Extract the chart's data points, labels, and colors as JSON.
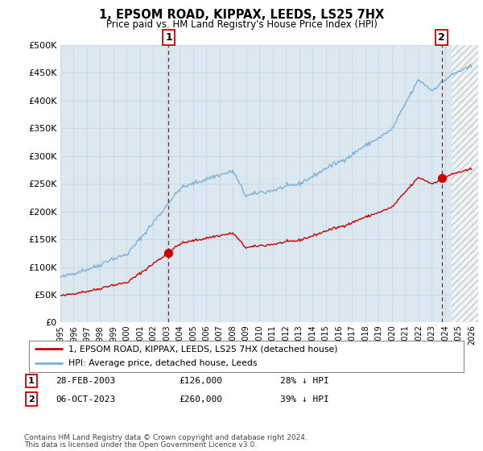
{
  "title": "1, EPSOM ROAD, KIPPAX, LEEDS, LS25 7HX",
  "subtitle": "Price paid vs. HM Land Registry's House Price Index (HPI)",
  "ylim": [
    0,
    500000
  ],
  "yticks": [
    0,
    50000,
    100000,
    150000,
    200000,
    250000,
    300000,
    350000,
    400000,
    450000,
    500000
  ],
  "xlim_start": 1995.0,
  "xlim_end": 2026.5,
  "hatch_start": 2024.5,
  "sale1_date": 2003.16,
  "sale1_price": 126000,
  "sale1_label": "1",
  "sale2_date": 2023.75,
  "sale2_price": 260000,
  "sale2_label": "2",
  "line_color_hpi": "#7ab0d4",
  "line_color_price": "#cc0000",
  "marker_color": "#cc0000",
  "vline_color": "#cc0000",
  "grid_color": "#c8d8e8",
  "background_color": "#dce8f0",
  "legend_entry1": "1, EPSOM ROAD, KIPPAX, LEEDS, LS25 7HX (detached house)",
  "legend_entry2": "HPI: Average price, detached house, Leeds",
  "table_rows": [
    {
      "num": "1",
      "date": "28-FEB-2003",
      "price": "£126,000",
      "pct": "28% ↓ HPI"
    },
    {
      "num": "2",
      "date": "06-OCT-2023",
      "price": "£260,000",
      "pct": "39% ↓ HPI"
    }
  ],
  "footnote1": "Contains HM Land Registry data © Crown copyright and database right 2024.",
  "footnote2": "This data is licensed under the Open Government Licence v3.0."
}
